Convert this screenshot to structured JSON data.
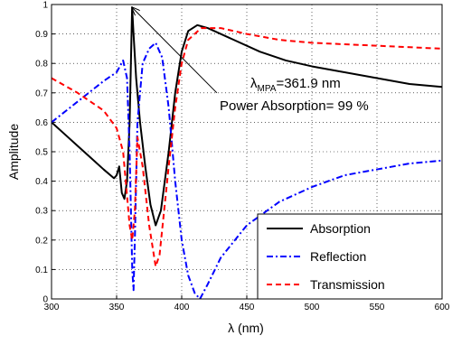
{
  "chart_data": {
    "type": "line",
    "xlabel": "λ (nm)",
    "ylabel": "Amplitude",
    "xlim": [
      300,
      600
    ],
    "xticks": [
      300,
      350,
      400,
      450,
      500,
      550,
      600
    ],
    "ylim": [
      0,
      1
    ],
    "yticks": [
      0,
      0.1,
      0.2,
      0.3,
      0.4,
      0.5,
      0.6,
      0.7,
      0.8,
      0.9,
      1
    ],
    "grid": true,
    "legend": "lower right",
    "series": [
      {
        "name": "Absorption",
        "color": "#000000",
        "style": "solid",
        "x": [
          300,
          310,
          320,
          330,
          340,
          348,
          350,
          352,
          354,
          356,
          358,
          360,
          361.9,
          363,
          365,
          368,
          372,
          376,
          380,
          384,
          390,
          395,
          400,
          405,
          412,
          420,
          440,
          460,
          480,
          500,
          525,
          550,
          575,
          600
        ],
        "values": [
          0.6,
          0.56,
          0.52,
          0.48,
          0.44,
          0.41,
          0.42,
          0.45,
          0.36,
          0.34,
          0.4,
          0.6,
          0.99,
          0.9,
          0.75,
          0.6,
          0.45,
          0.32,
          0.25,
          0.3,
          0.5,
          0.7,
          0.84,
          0.91,
          0.93,
          0.92,
          0.88,
          0.84,
          0.81,
          0.79,
          0.77,
          0.75,
          0.73,
          0.72
        ]
      },
      {
        "name": "Reflection",
        "color": "#0000ff",
        "style": "dashdot",
        "x": [
          300,
          320,
          340,
          350,
          355,
          358,
          360,
          362,
          363,
          364,
          366,
          370,
          375,
          380,
          385,
          390,
          395,
          400,
          405,
          410,
          414,
          420,
          430,
          450,
          475,
          500,
          525,
          550,
          575,
          600
        ],
        "values": [
          0.6,
          0.67,
          0.74,
          0.77,
          0.81,
          0.75,
          0.5,
          0.1,
          0.03,
          0.2,
          0.6,
          0.8,
          0.85,
          0.87,
          0.82,
          0.65,
          0.4,
          0.2,
          0.08,
          0.02,
          0.0,
          0.05,
          0.14,
          0.25,
          0.33,
          0.38,
          0.42,
          0.44,
          0.46,
          0.47
        ]
      },
      {
        "name": "Transmission",
        "color": "#ff0000",
        "style": "dashed",
        "x": [
          300,
          320,
          340,
          350,
          355,
          358,
          360,
          362,
          364,
          366,
          370,
          375,
          380,
          383,
          390,
          395,
          400,
          405,
          415,
          430,
          450,
          475,
          500,
          550,
          600
        ],
        "values": [
          0.75,
          0.7,
          0.64,
          0.58,
          0.5,
          0.35,
          0.25,
          0.2,
          0.3,
          0.55,
          0.45,
          0.25,
          0.11,
          0.15,
          0.45,
          0.65,
          0.8,
          0.88,
          0.92,
          0.92,
          0.9,
          0.88,
          0.87,
          0.86,
          0.85
        ]
      }
    ],
    "annotation": {
      "symbol": "λ",
      "subscript": "MPA",
      "value_text": "=361.9 nm",
      "line2": "Power Absorption= 99 %",
      "xy": [
        361.9,
        0.99
      ],
      "xytext": [
        427,
        0.7
      ]
    }
  }
}
